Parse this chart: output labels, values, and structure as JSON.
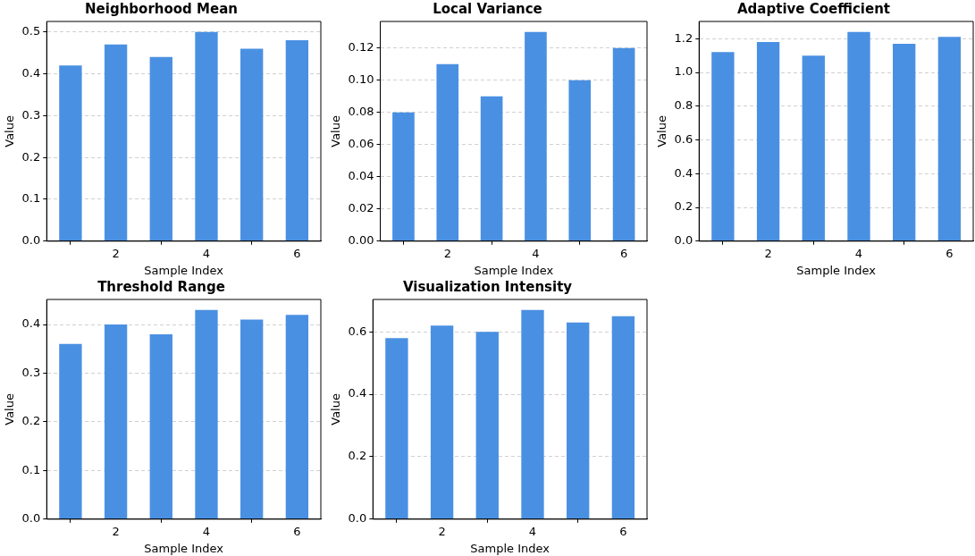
{
  "chart_data": [
    {
      "type": "bar",
      "title": "Neighborhood Mean",
      "xlabel": "Sample Index",
      "ylabel": "Value",
      "x": [
        1,
        2,
        3,
        4,
        5,
        6
      ],
      "values": [
        0.42,
        0.47,
        0.44,
        0.5,
        0.46,
        0.48
      ],
      "color": "#4a90e2",
      "xlim": [
        0.475,
        6.525
      ],
      "xticks": [
        2,
        4,
        6
      ],
      "ylim": [
        0,
        0.525
      ],
      "yticks": [
        {
          "value": 0,
          "label": "0.0"
        },
        0.1,
        0.2,
        0.3,
        0.4,
        0.5
      ],
      "grid": "y"
    },
    {
      "type": "bar",
      "title": "Local Variance",
      "xlabel": "Sample Index",
      "ylabel": "Value",
      "x": [
        1,
        2,
        3,
        4,
        5,
        6
      ],
      "values": [
        0.08,
        0.11,
        0.09,
        0.13,
        0.1,
        0.12
      ],
      "color": "#4a90e2",
      "xlim": [
        0.475,
        6.525
      ],
      "xticks": [
        2,
        4,
        6
      ],
      "ylim": [
        0,
        0.1365
      ],
      "yticks": [
        {
          "value": 0,
          "label": "0.00"
        },
        {
          "value": 0.02,
          "label": "0.02"
        },
        {
          "value": 0.04,
          "label": "0.04"
        },
        {
          "value": 0.06,
          "label": "0.06"
        },
        {
          "value": 0.08,
          "label": "0.08"
        },
        {
          "value": 0.1,
          "label": "0.10"
        },
        {
          "value": 0.12,
          "label": "0.12"
        }
      ],
      "grid": "y"
    },
    {
      "type": "bar",
      "title": "Adaptive Coefficient",
      "xlabel": "Sample Index",
      "ylabel": "Value",
      "x": [
        1,
        2,
        3,
        4,
        5,
        6
      ],
      "values": [
        1.12,
        1.18,
        1.1,
        1.24,
        1.17,
        1.21
      ],
      "color": "#4a90e2",
      "xlim": [
        0.475,
        6.525
      ],
      "xticks": [
        2,
        4,
        6
      ],
      "ylim": [
        0,
        1.302
      ],
      "yticks": [
        {
          "value": 0,
          "label": "0.0"
        },
        0.2,
        0.4,
        0.6,
        0.8,
        {
          "value": 1,
          "label": "1.0"
        },
        1.2
      ],
      "grid": "y"
    },
    {
      "type": "bar",
      "title": "Threshold Range",
      "xlabel": "Sample Index",
      "ylabel": "Value",
      "x": [
        1,
        2,
        3,
        4,
        5,
        6
      ],
      "values": [
        0.36,
        0.4,
        0.38,
        0.43,
        0.41,
        0.42
      ],
      "color": "#4a90e2",
      "xlim": [
        0.475,
        6.525
      ],
      "xticks": [
        2,
        4,
        6
      ],
      "ylim": [
        0,
        0.4515
      ],
      "yticks": [
        {
          "value": 0,
          "label": "0.0"
        },
        0.1,
        0.2,
        0.3,
        0.4
      ],
      "grid": "y"
    },
    {
      "type": "bar",
      "title": "Visualization Intensity",
      "xlabel": "Sample Index",
      "ylabel": "Value",
      "x": [
        1,
        2,
        3,
        4,
        5,
        6
      ],
      "values": [
        0.58,
        0.62,
        0.6,
        0.67,
        0.63,
        0.65
      ],
      "color": "#4a90e2",
      "xlim": [
        0.475,
        6.525
      ],
      "xticks": [
        2,
        4,
        6
      ],
      "ylim": [
        0,
        0.7035
      ],
      "yticks": [
        {
          "value": 0,
          "label": "0.0"
        },
        0.2,
        0.4,
        0.6
      ],
      "grid": "y"
    }
  ]
}
